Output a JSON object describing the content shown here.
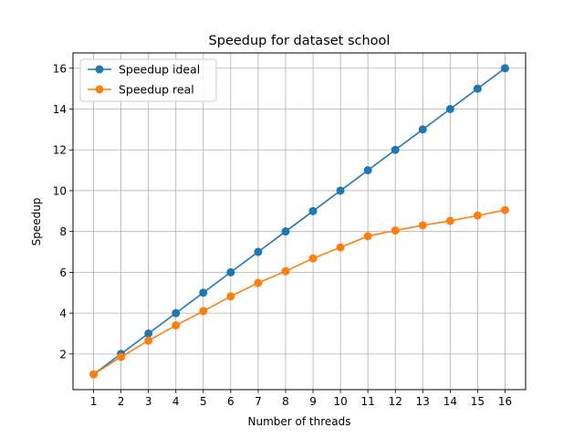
{
  "chart_data": {
    "type": "line",
    "title": "Speedup for dataset school",
    "xlabel": "Number of threads",
    "ylabel": "Speedup",
    "x": [
      1,
      2,
      3,
      4,
      5,
      6,
      7,
      8,
      9,
      10,
      11,
      12,
      13,
      14,
      15,
      16
    ],
    "xlim": [
      0.25,
      16.75
    ],
    "ylim": [
      0.25,
      16.75
    ],
    "xticks": [
      1,
      2,
      3,
      4,
      5,
      6,
      7,
      8,
      9,
      10,
      11,
      12,
      13,
      14,
      15,
      16
    ],
    "yticks": [
      2,
      4,
      6,
      8,
      10,
      12,
      14,
      16
    ],
    "grid": true,
    "legend": "upper-left",
    "series": [
      {
        "name": "Speedup ideal",
        "color": "#1f77b4",
        "values": [
          1,
          2,
          3,
          4,
          5,
          6,
          7,
          8,
          9,
          10,
          11,
          12,
          13,
          14,
          15,
          16
        ]
      },
      {
        "name": "Speedup real",
        "color": "#ff7f0e",
        "values": [
          1.0,
          1.85,
          2.65,
          3.4,
          4.1,
          4.82,
          5.48,
          6.05,
          6.68,
          7.22,
          7.77,
          8.05,
          8.3,
          8.52,
          8.78,
          9.05
        ]
      }
    ]
  }
}
